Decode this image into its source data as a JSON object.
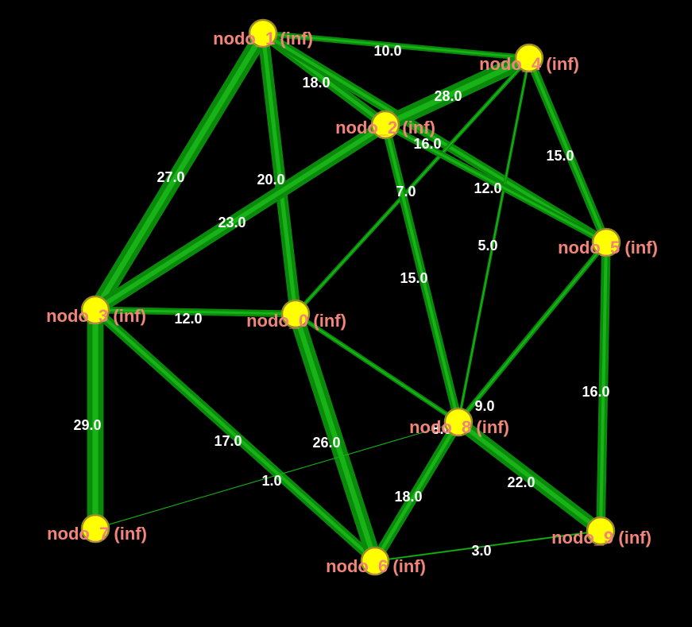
{
  "colors": {
    "background": "#000000",
    "edge": "#0a8a0a",
    "edge_highlight": "#22d622",
    "node_fill": "#ffff00",
    "node_stroke": "#9a8a2a",
    "node_label": "#f2857a",
    "weight_label": "#ffffff"
  },
  "nodes": [
    {
      "id": "0",
      "label": "nodo_0 (inf)"
    },
    {
      "id": "1",
      "label": "nodo_1 (inf)"
    },
    {
      "id": "2",
      "label": "nodo_2 (inf)"
    },
    {
      "id": "3",
      "label": "nodo_3 (inf)"
    },
    {
      "id": "4",
      "label": "nodo_4 (inf)"
    },
    {
      "id": "5",
      "label": "nodo_5 (inf)"
    },
    {
      "id": "6",
      "label": "nodo_6 (inf)"
    },
    {
      "id": "7",
      "label": "nodo_7 (inf)"
    },
    {
      "id": "8",
      "label": "nodo_8 (inf)"
    },
    {
      "id": "9",
      "label": "nodo_9 (inf)"
    }
  ],
  "edges": [
    {
      "source": "1",
      "target": "4",
      "weight": 10.0,
      "label": "10.0"
    },
    {
      "source": "1",
      "target": "2",
      "weight": 18.0,
      "label": "18.0"
    },
    {
      "source": "1",
      "target": "5",
      "weight": 16.0,
      "label": "16.0"
    },
    {
      "source": "1",
      "target": "3",
      "weight": 27.0,
      "label": "27.0"
    },
    {
      "source": "1",
      "target": "0",
      "weight": 20.0,
      "label": "20.0"
    },
    {
      "source": "4",
      "target": "2",
      "weight": 28.0,
      "label": "28.0"
    },
    {
      "source": "4",
      "target": "5",
      "weight": 15.0,
      "label": "15.0"
    },
    {
      "source": "4",
      "target": "0",
      "weight": 7.0,
      "label": "7.0"
    },
    {
      "source": "4",
      "target": "8",
      "weight": 5.0,
      "label": "5.0"
    },
    {
      "source": "2",
      "target": "5",
      "weight": 12.0,
      "label": "12.0"
    },
    {
      "source": "2",
      "target": "3",
      "weight": 23.0,
      "label": "23.0"
    },
    {
      "source": "2",
      "target": "8",
      "weight": 15.0,
      "label": "15.0"
    },
    {
      "source": "3",
      "target": "0",
      "weight": 12.0,
      "label": "12.0"
    },
    {
      "source": "3",
      "target": "7",
      "weight": 29.0,
      "label": "29.0"
    },
    {
      "source": "3",
      "target": "6",
      "weight": 17.0,
      "label": "17.0"
    },
    {
      "source": "0",
      "target": "6",
      "weight": 26.0,
      "label": "26.0"
    },
    {
      "source": "0",
      "target": "8",
      "weight": 8.0,
      "label": "8.0"
    },
    {
      "source": "5",
      "target": "8",
      "weight": 9.0,
      "label": "9.0"
    },
    {
      "source": "5",
      "target": "9",
      "weight": 16.0,
      "label": "16.0"
    },
    {
      "source": "8",
      "target": "9",
      "weight": 22.0,
      "label": "22.0"
    },
    {
      "source": "8",
      "target": "6",
      "weight": 18.0,
      "label": "18.0"
    },
    {
      "source": "7",
      "target": "8",
      "weight": 1.0,
      "label": "1.0"
    },
    {
      "source": "6",
      "target": "9",
      "weight": 3.0,
      "label": "3.0"
    }
  ]
}
